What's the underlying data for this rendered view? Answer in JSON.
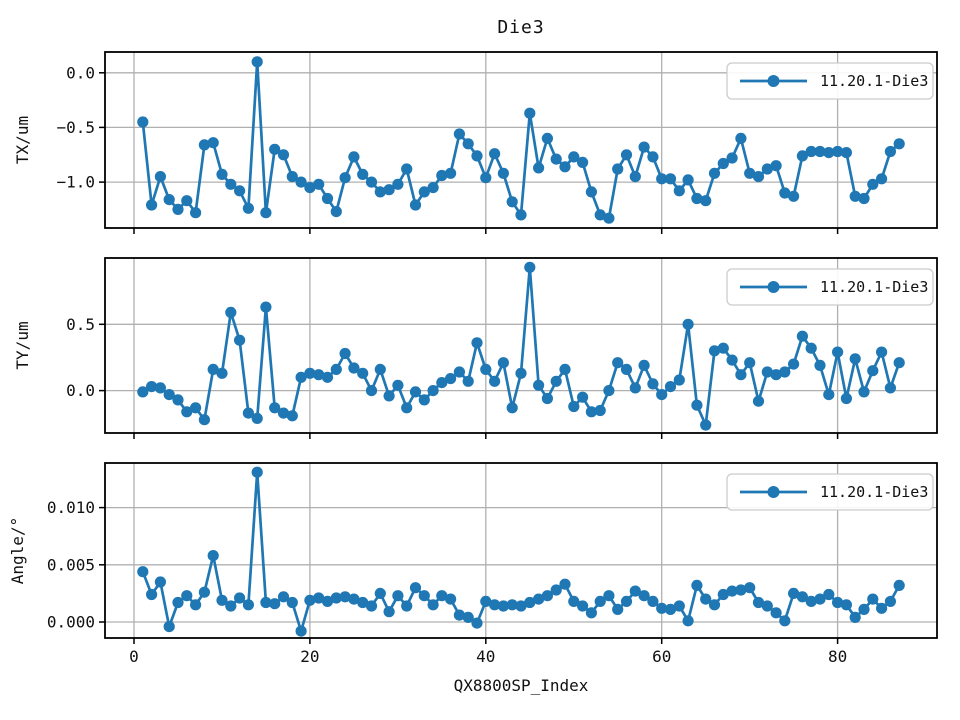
{
  "figure": {
    "title": "Die3",
    "xlabel": "QX8800SP_Index",
    "legend_label": "11.20.1-Die3",
    "line_color": "#1f77b4",
    "grid_color": "#b0b0b0",
    "spine_color": "#000000",
    "background": "#ffffff"
  },
  "chart_data": [
    {
      "id": "tx",
      "type": "line",
      "title": "Die3",
      "ylabel": "TX/um",
      "legend": "11.20.1-Die3",
      "legend_position": "upper right",
      "grid": true,
      "marker": "circle",
      "color": "#1f77b4",
      "xlim": [
        -3.3,
        91.3
      ],
      "ylim": [
        -1.42,
        0.19
      ],
      "xticks": [
        0,
        20,
        40,
        60,
        80
      ],
      "yticks": [
        0.0,
        -0.5,
        -1.0
      ],
      "ytick_labels": [
        "0.0",
        "−0.5",
        "−1.0"
      ],
      "x": [
        1,
        2,
        3,
        4,
        5,
        6,
        7,
        8,
        9,
        10,
        11,
        12,
        13,
        14,
        15,
        16,
        17,
        18,
        19,
        20,
        21,
        22,
        23,
        24,
        25,
        26,
        27,
        28,
        29,
        30,
        31,
        32,
        33,
        34,
        35,
        36,
        37,
        38,
        39,
        40,
        41,
        42,
        43,
        44,
        45,
        46,
        47,
        48,
        49,
        50,
        51,
        52,
        53,
        54,
        55,
        56,
        57,
        58,
        59,
        60,
        61,
        62,
        63,
        64,
        65,
        66,
        67,
        68,
        69,
        70,
        71,
        72,
        73,
        74,
        75,
        76,
        77,
        78,
        79,
        80,
        81,
        82,
        83,
        84,
        85,
        86,
        87
      ],
      "values": [
        -0.45,
        -1.21,
        -0.95,
        -1.16,
        -1.25,
        -1.17,
        -1.28,
        -0.66,
        -0.64,
        -0.93,
        -1.02,
        -1.08,
        -1.24,
        0.1,
        -1.28,
        -0.7,
        -0.75,
        -0.95,
        -1.0,
        -1.05,
        -1.02,
        -1.15,
        -1.27,
        -0.96,
        -0.77,
        -0.93,
        -1.0,
        -1.09,
        -1.07,
        -1.02,
        -0.88,
        -1.21,
        -1.09,
        -1.05,
        -0.94,
        -0.92,
        -0.56,
        -0.65,
        -0.76,
        -0.96,
        -0.74,
        -0.92,
        -1.18,
        -1.3,
        -0.37,
        -0.87,
        -0.6,
        -0.79,
        -0.86,
        -0.77,
        -0.82,
        -1.09,
        -1.3,
        -1.33,
        -0.88,
        -0.75,
        -0.95,
        -0.68,
        -0.77,
        -0.97,
        -0.97,
        -1.08,
        -0.98,
        -1.15,
        -1.17,
        -0.92,
        -0.83,
        -0.78,
        -0.6,
        -0.92,
        -0.95,
        -0.88,
        -0.85,
        -1.1,
        -1.13,
        -0.76,
        -0.72,
        -0.72,
        -0.73,
        -0.72,
        -0.73,
        -1.13,
        -1.15,
        -1.02,
        -0.97,
        -0.72,
        -0.65
      ]
    },
    {
      "id": "ty",
      "type": "line",
      "ylabel": "TY/um",
      "legend": "11.20.1-Die3",
      "legend_position": "upper right",
      "grid": true,
      "marker": "circle",
      "color": "#1f77b4",
      "xlim": [
        -3.3,
        91.3
      ],
      "ylim": [
        -0.32,
        1.0
      ],
      "xticks": [
        0,
        20,
        40,
        60,
        80
      ],
      "yticks": [
        0.5,
        0.0
      ],
      "ytick_labels": [
        "0.5",
        "0.0"
      ],
      "x": [
        1,
        2,
        3,
        4,
        5,
        6,
        7,
        8,
        9,
        10,
        11,
        12,
        13,
        14,
        15,
        16,
        17,
        18,
        19,
        20,
        21,
        22,
        23,
        24,
        25,
        26,
        27,
        28,
        29,
        30,
        31,
        32,
        33,
        34,
        35,
        36,
        37,
        38,
        39,
        40,
        41,
        42,
        43,
        44,
        45,
        46,
        47,
        48,
        49,
        50,
        51,
        52,
        53,
        54,
        55,
        56,
        57,
        58,
        59,
        60,
        61,
        62,
        63,
        64,
        65,
        66,
        67,
        68,
        69,
        70,
        71,
        72,
        73,
        74,
        75,
        76,
        77,
        78,
        79,
        80,
        81,
        82,
        83,
        84,
        85,
        86,
        87
      ],
      "values": [
        -0.01,
        0.03,
        0.02,
        -0.03,
        -0.07,
        -0.16,
        -0.13,
        -0.22,
        0.16,
        0.13,
        0.59,
        0.38,
        -0.17,
        -0.21,
        0.63,
        -0.13,
        -0.17,
        -0.19,
        0.1,
        0.13,
        0.12,
        0.1,
        0.16,
        0.28,
        0.17,
        0.13,
        0.0,
        0.16,
        -0.04,
        0.04,
        -0.13,
        -0.01,
        -0.07,
        0.0,
        0.06,
        0.09,
        0.14,
        0.07,
        0.36,
        0.16,
        0.07,
        0.21,
        -0.13,
        0.13,
        0.93,
        0.04,
        -0.06,
        0.07,
        0.16,
        -0.12,
        -0.05,
        -0.16,
        -0.15,
        0.0,
        0.21,
        0.16,
        0.02,
        0.19,
        0.05,
        -0.03,
        0.03,
        0.08,
        0.5,
        -0.11,
        -0.26,
        0.3,
        0.32,
        0.23,
        0.12,
        0.21,
        -0.08,
        0.14,
        0.12,
        0.14,
        0.2,
        0.41,
        0.32,
        0.19,
        -0.03,
        0.29,
        -0.06,
        0.24,
        -0.01,
        0.15,
        0.29,
        0.02,
        0.21
      ]
    },
    {
      "id": "angle",
      "type": "line",
      "ylabel": "Angle/°",
      "xlabel": "QX8800SP_Index",
      "legend": "11.20.1-Die3",
      "legend_position": "upper right",
      "grid": true,
      "marker": "circle",
      "color": "#1f77b4",
      "xlim": [
        -3.3,
        91.3
      ],
      "ylim": [
        -0.0014,
        0.0139
      ],
      "xticks": [
        0,
        20,
        40,
        60,
        80
      ],
      "xtick_labels": [
        "0",
        "20",
        "40",
        "60",
        "80"
      ],
      "yticks": [
        0.01,
        0.005,
        0.0
      ],
      "ytick_labels": [
        "0.010",
        "0.005",
        "0.000"
      ],
      "x": [
        1,
        2,
        3,
        4,
        5,
        6,
        7,
        8,
        9,
        10,
        11,
        12,
        13,
        14,
        15,
        16,
        17,
        18,
        19,
        20,
        21,
        22,
        23,
        24,
        25,
        26,
        27,
        28,
        29,
        30,
        31,
        32,
        33,
        34,
        35,
        36,
        37,
        38,
        39,
        40,
        41,
        42,
        43,
        44,
        45,
        46,
        47,
        48,
        49,
        50,
        51,
        52,
        53,
        54,
        55,
        56,
        57,
        58,
        59,
        60,
        61,
        62,
        63,
        64,
        65,
        66,
        67,
        68,
        69,
        70,
        71,
        72,
        73,
        74,
        75,
        76,
        77,
        78,
        79,
        80,
        81,
        82,
        83,
        84,
        85,
        86,
        87
      ],
      "values": [
        0.0044,
        0.0024,
        0.0035,
        -0.0004,
        0.0017,
        0.0023,
        0.0015,
        0.0026,
        0.0058,
        0.0019,
        0.0014,
        0.0021,
        0.0015,
        0.0131,
        0.0017,
        0.0016,
        0.0022,
        0.0017,
        -0.0008,
        0.0019,
        0.0021,
        0.0018,
        0.0021,
        0.0022,
        0.002,
        0.0017,
        0.0014,
        0.0025,
        0.0009,
        0.0023,
        0.0014,
        0.003,
        0.0023,
        0.0015,
        0.0023,
        0.002,
        0.0006,
        0.0004,
        -0.0001,
        0.0018,
        0.0015,
        0.0014,
        0.0015,
        0.0014,
        0.0017,
        0.002,
        0.0023,
        0.0028,
        0.0033,
        0.0018,
        0.0014,
        0.0008,
        0.0018,
        0.0023,
        0.0011,
        0.0018,
        0.0027,
        0.0023,
        0.0018,
        0.0012,
        0.0011,
        0.0014,
        0.0001,
        0.0032,
        0.002,
        0.0015,
        0.0024,
        0.0027,
        0.0028,
        0.003,
        0.0017,
        0.0014,
        0.0008,
        0.0001,
        0.0025,
        0.0022,
        0.0018,
        0.002,
        0.0024,
        0.0017,
        0.0015,
        0.0004,
        0.0011,
        0.002,
        0.0012,
        0.0018,
        0.0032
      ]
    }
  ]
}
